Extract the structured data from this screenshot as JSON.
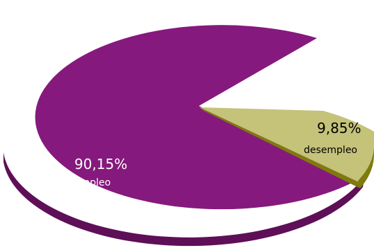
{
  "chart_data": {
    "type": "pie",
    "title": "",
    "style": "3d-exploded",
    "slices": [
      {
        "label": "empleo",
        "value": 90.15,
        "value_text": "90,15%",
        "color": "#86197d",
        "side_color": "#5e0f58"
      },
      {
        "label": "desempleo",
        "value": 9.85,
        "value_text": "9,85%",
        "color": "#c5c27a",
        "side_color": "#7f7a0d"
      }
    ]
  }
}
